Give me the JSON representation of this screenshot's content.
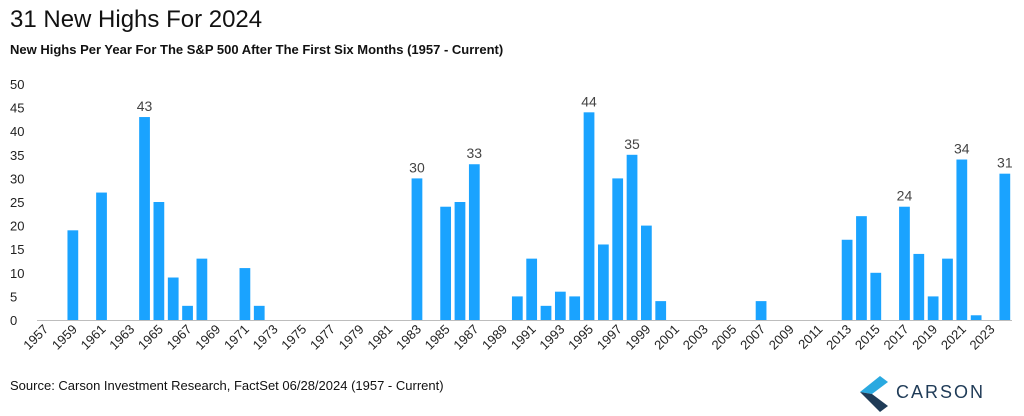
{
  "header": {
    "title": "31 New Highs For 2024",
    "subtitle": "New Highs Per Year For The S&P 500 After The First Six Months (1957 - Current)"
  },
  "footer": {
    "source": "Source: Carson Investment Research, FactSet 06/28/2024 (1957 - Current)",
    "logo_text": "CARSON"
  },
  "colors": {
    "bar": "#1AA3FF",
    "logo_dark": "#1f3b57",
    "logo_light": "#2aa9e0"
  },
  "chart_data": {
    "type": "bar",
    "title": "31 New Highs For 2024",
    "subtitle": "New Highs Per Year For The S&P 500 After The First Six Months (1957 - Current)",
    "ylim": [
      0,
      50
    ],
    "yticks": [
      0,
      5,
      10,
      15,
      20,
      25,
      30,
      35,
      40,
      45,
      50
    ],
    "categories": [
      "1957",
      "1958",
      "1959",
      "1960",
      "1961",
      "1962",
      "1963",
      "1964",
      "1965",
      "1966",
      "1967",
      "1968",
      "1969",
      "1970",
      "1971",
      "1972",
      "1973",
      "1974",
      "1975",
      "1976",
      "1977",
      "1978",
      "1979",
      "1980",
      "1981",
      "1982",
      "1983",
      "1984",
      "1985",
      "1986",
      "1987",
      "1988",
      "1989",
      "1990",
      "1991",
      "1992",
      "1993",
      "1994",
      "1995",
      "1996",
      "1997",
      "1998",
      "1999",
      "2000",
      "2001",
      "2002",
      "2003",
      "2004",
      "2005",
      "2006",
      "2007",
      "2008",
      "2009",
      "2010",
      "2011",
      "2012",
      "2013",
      "2014",
      "2015",
      "2016",
      "2017",
      "2018",
      "2019",
      "2020",
      "2021",
      "2022",
      "2023",
      "2024"
    ],
    "xtick_labels": [
      "1957",
      "1959",
      "1961",
      "1963",
      "1965",
      "1967",
      "1969",
      "1971",
      "1973",
      "1975",
      "1977",
      "1979",
      "1981",
      "1983",
      "1985",
      "1987",
      "1989",
      "1991",
      "1993",
      "1995",
      "1997",
      "1999",
      "2001",
      "2003",
      "2005",
      "2007",
      "2009",
      "2011",
      "2013",
      "2015",
      "2017",
      "2019",
      "2021",
      "2023"
    ],
    "values": [
      0,
      0,
      19,
      0,
      27,
      0,
      0,
      43,
      25,
      9,
      3,
      13,
      0,
      0,
      11,
      3,
      0,
      0,
      0,
      0,
      0,
      0,
      0,
      0,
      0,
      0,
      30,
      0,
      24,
      25,
      33,
      0,
      0,
      5,
      13,
      3,
      6,
      5,
      44,
      16,
      30,
      35,
      20,
      4,
      0,
      0,
      0,
      0,
      0,
      0,
      4,
      0,
      0,
      0,
      0,
      0,
      17,
      22,
      10,
      0,
      24,
      14,
      5,
      13,
      34,
      1,
      0,
      31
    ],
    "data_labels": [
      {
        "category": "1964",
        "text": "43"
      },
      {
        "category": "1983",
        "text": "30"
      },
      {
        "category": "1987",
        "text": "33"
      },
      {
        "category": "1995",
        "text": "44"
      },
      {
        "category": "1998",
        "text": "35"
      },
      {
        "category": "2017",
        "text": "24"
      },
      {
        "category": "2021",
        "text": "34"
      },
      {
        "category": "2024",
        "text": "31"
      }
    ],
    "grid": false,
    "legend": "none"
  }
}
